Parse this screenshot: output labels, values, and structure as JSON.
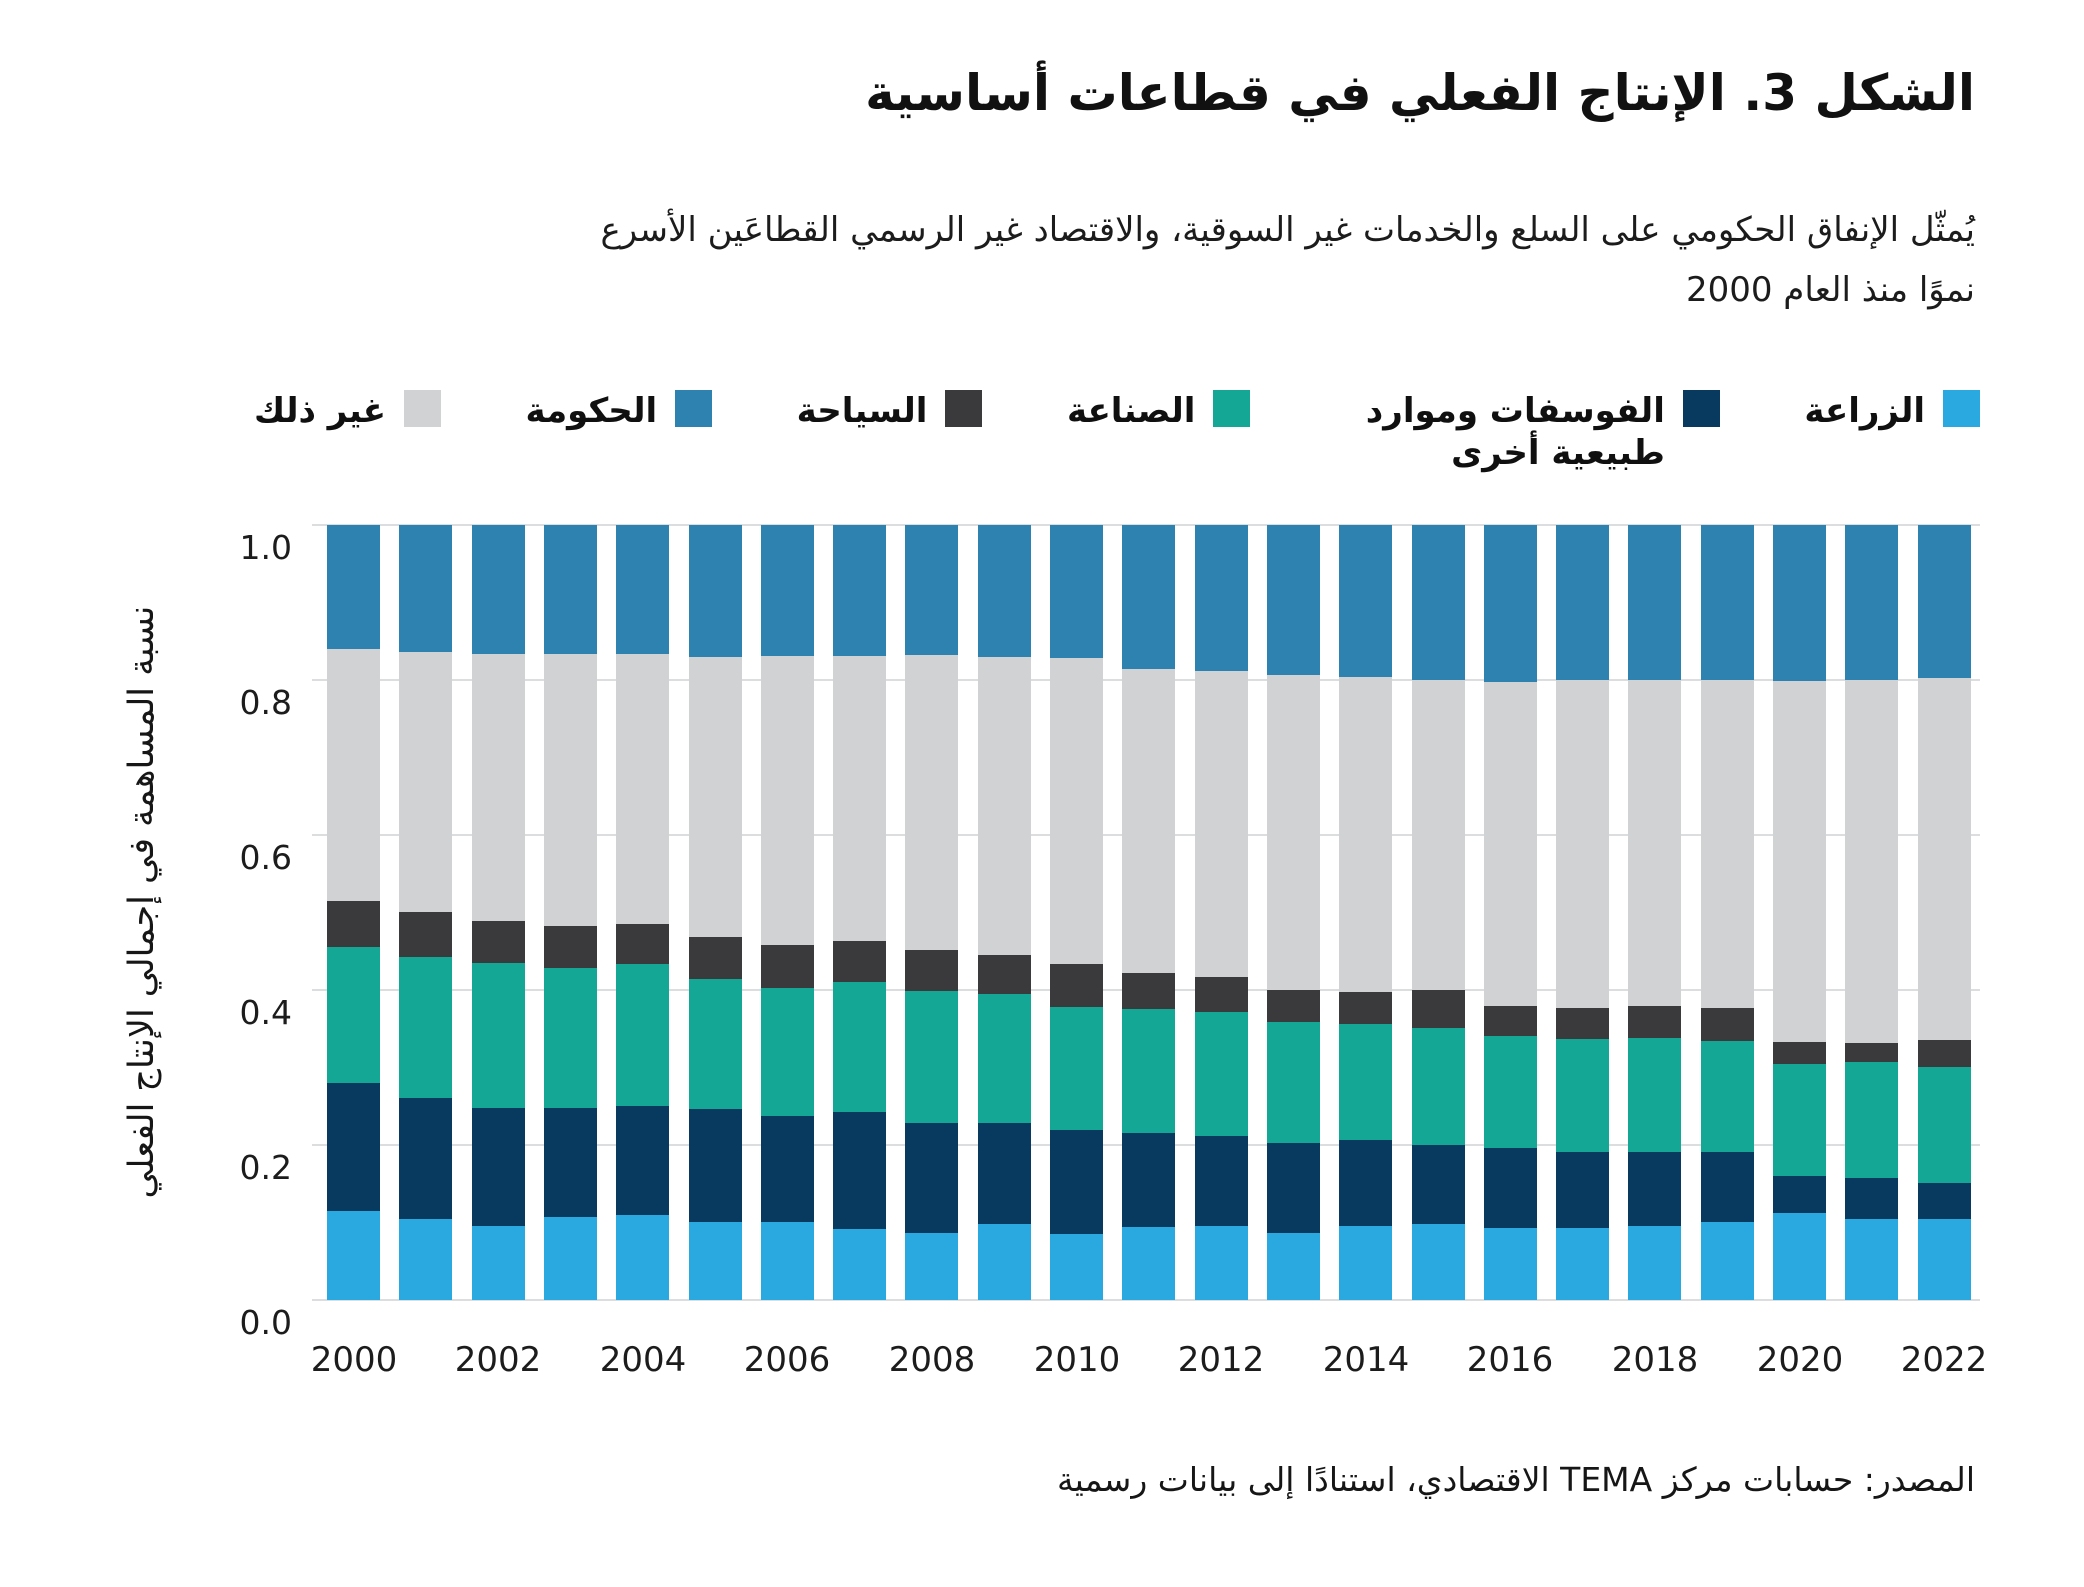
{
  "page": {
    "title": "الشكل 3. الإنتاج الفعلي في قطاعات أساسية",
    "subtitle_lines": [
      "يُمثّل الإنفاق الحكومي على السلع والخدمات غير السوقية، والاقتصاد غير الرسمي القطاعَين الأسرع",
      "نموًا منذ العام 2000"
    ],
    "source": "المصدر: حسابات مركز TEMA الاقتصادي، استنادًا إلى بيانات رسمية"
  },
  "legend": {
    "items": [
      {
        "key": "agriculture",
        "wrap": false
      },
      {
        "key": "phosphates",
        "wrap": true
      },
      {
        "key": "industry",
        "wrap": false
      },
      {
        "key": "tourism",
        "wrap": false
      },
      {
        "key": "government",
        "wrap": false
      },
      {
        "key": "other",
        "wrap": false
      }
    ]
  },
  "chart_data": {
    "type": "bar",
    "stacked": true,
    "normalized": true,
    "title": "الشكل 3. الإنتاج الفعلي في قطاعات أساسية",
    "xlabel": "",
    "ylabel": "نسبة المساهمة في إجمالي الإنتاج الفعلي",
    "ylim": [
      0.0,
      1.0
    ],
    "grid": true,
    "yticks": [
      "1.0",
      "0.8",
      "0.6",
      "0.4",
      "0.2",
      "0.0"
    ],
    "xtick_labels": [
      "2000",
      "2002",
      "2004",
      "2006",
      "2008",
      "2010",
      "2012",
      "2014",
      "2016",
      "2018",
      "2020",
      "2022"
    ],
    "years": [
      2000,
      2001,
      2002,
      2003,
      2004,
      2005,
      2006,
      2007,
      2008,
      2009,
      2010,
      2011,
      2012,
      2013,
      2014,
      2015,
      2016,
      2017,
      2018,
      2019,
      2020,
      2021,
      2022
    ],
    "colors": {
      "gridline": "#dbdddf",
      "background": "#ffffff"
    },
    "series": [
      {
        "key": "agriculture",
        "name": "الزراعة",
        "color": "#29A9E0",
        "values": [
          0.115,
          0.105,
          0.095,
          0.107,
          0.11,
          0.1,
          0.1,
          0.092,
          0.087,
          0.098,
          0.085,
          0.094,
          0.096,
          0.087,
          0.096,
          0.098,
          0.093,
          0.093,
          0.096,
          0.101,
          0.112,
          0.104,
          0.104
        ]
      },
      {
        "key": "phosphates",
        "name": "الفوسفات وموارد طبيعية أخرى",
        "color": "#083A5F",
        "values": [
          0.165,
          0.155,
          0.153,
          0.141,
          0.14,
          0.147,
          0.138,
          0.15,
          0.141,
          0.131,
          0.134,
          0.121,
          0.116,
          0.116,
          0.111,
          0.102,
          0.103,
          0.098,
          0.095,
          0.09,
          0.048,
          0.054,
          0.047
        ]
      },
      {
        "key": "industry",
        "name": "الصناعة",
        "color": "#15A795",
        "values": [
          0.175,
          0.182,
          0.187,
          0.18,
          0.183,
          0.167,
          0.164,
          0.168,
          0.171,
          0.166,
          0.159,
          0.161,
          0.159,
          0.156,
          0.149,
          0.151,
          0.145,
          0.146,
          0.147,
          0.143,
          0.145,
          0.149,
          0.15
        ]
      },
      {
        "key": "tourism",
        "name": "السياحة",
        "color": "#3A3A3C",
        "values": [
          0.06,
          0.058,
          0.054,
          0.054,
          0.052,
          0.054,
          0.056,
          0.053,
          0.052,
          0.05,
          0.055,
          0.046,
          0.046,
          0.041,
          0.042,
          0.049,
          0.038,
          0.04,
          0.041,
          0.043,
          0.028,
          0.025,
          0.035
        ]
      },
      {
        "key": "other",
        "name": "غير ذلك",
        "color": "#D0D2D4",
        "values": [
          0.325,
          0.336,
          0.345,
          0.351,
          0.349,
          0.362,
          0.373,
          0.368,
          0.381,
          0.385,
          0.395,
          0.392,
          0.395,
          0.406,
          0.406,
          0.4,
          0.419,
          0.423,
          0.421,
          0.423,
          0.466,
          0.468,
          0.467
        ]
      },
      {
        "key": "government",
        "name": "الحكومة",
        "color": "#2E82B0",
        "values": [
          0.16,
          0.164,
          0.166,
          0.167,
          0.166,
          0.17,
          0.169,
          0.169,
          0.168,
          0.17,
          0.172,
          0.186,
          0.188,
          0.194,
          0.196,
          0.2,
          0.202,
          0.2,
          0.2,
          0.2,
          0.201,
          0.2,
          0.197
        ]
      }
    ]
  }
}
